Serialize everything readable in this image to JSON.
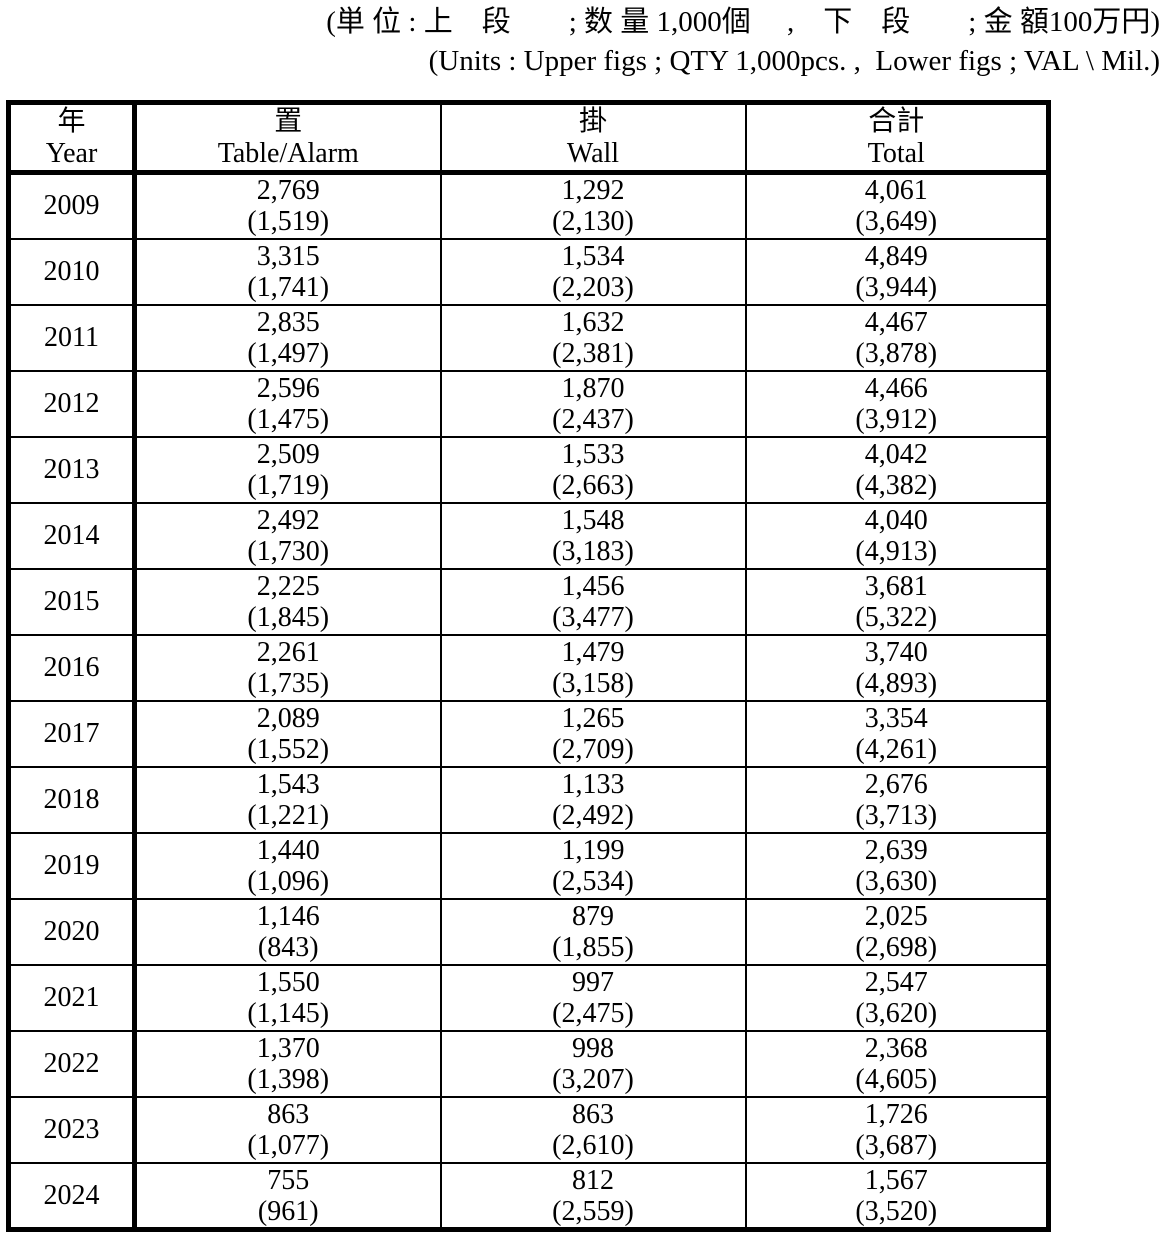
{
  "note": {
    "line1_jp": "(単 位 : 上　段　　; 数 量 1,000個　 ,　下　段　　; 金 額100万円)",
    "line2_en": "(Units : Upper figs ; QTY 1,000pcs. ,  Lower figs ; VAL \\ Mil.)"
  },
  "table": {
    "columns": [
      {
        "jp": "年",
        "en": "Year"
      },
      {
        "jp": "置",
        "en": "Table/Alarm"
      },
      {
        "jp": "掛",
        "en": "Wall"
      },
      {
        "jp": "合計",
        "en": "Total"
      }
    ],
    "rows": [
      {
        "year": "2009",
        "table_alarm": {
          "qty": "2,769",
          "val": "(1,519)"
        },
        "wall": {
          "qty": "1,292",
          "val": "(2,130)"
        },
        "total": {
          "qty": "4,061",
          "val": "(3,649)"
        }
      },
      {
        "year": "2010",
        "table_alarm": {
          "qty": "3,315",
          "val": "(1,741)"
        },
        "wall": {
          "qty": "1,534",
          "val": "(2,203)"
        },
        "total": {
          "qty": "4,849",
          "val": "(3,944)"
        }
      },
      {
        "year": "2011",
        "table_alarm": {
          "qty": "2,835",
          "val": "(1,497)"
        },
        "wall": {
          "qty": "1,632",
          "val": "(2,381)"
        },
        "total": {
          "qty": "4,467",
          "val": "(3,878)"
        }
      },
      {
        "year": "2012",
        "table_alarm": {
          "qty": "2,596",
          "val": "(1,475)"
        },
        "wall": {
          "qty": "1,870",
          "val": "(2,437)"
        },
        "total": {
          "qty": "4,466",
          "val": "(3,912)"
        }
      },
      {
        "year": "2013",
        "table_alarm": {
          "qty": "2,509",
          "val": "(1,719)"
        },
        "wall": {
          "qty": "1,533",
          "val": "(2,663)"
        },
        "total": {
          "qty": "4,042",
          "val": "(4,382)"
        }
      },
      {
        "year": "2014",
        "table_alarm": {
          "qty": "2,492",
          "val": "(1,730)"
        },
        "wall": {
          "qty": "1,548",
          "val": "(3,183)"
        },
        "total": {
          "qty": "4,040",
          "val": "(4,913)"
        }
      },
      {
        "year": "2015",
        "table_alarm": {
          "qty": "2,225",
          "val": "(1,845)"
        },
        "wall": {
          "qty": "1,456",
          "val": "(3,477)"
        },
        "total": {
          "qty": "3,681",
          "val": "(5,322)"
        }
      },
      {
        "year": "2016",
        "table_alarm": {
          "qty": "2,261",
          "val": "(1,735)"
        },
        "wall": {
          "qty": "1,479",
          "val": "(3,158)"
        },
        "total": {
          "qty": "3,740",
          "val": "(4,893)"
        }
      },
      {
        "year": "2017",
        "table_alarm": {
          "qty": "2,089",
          "val": "(1,552)"
        },
        "wall": {
          "qty": "1,265",
          "val": "(2,709)"
        },
        "total": {
          "qty": "3,354",
          "val": "(4,261)"
        }
      },
      {
        "year": "2018",
        "table_alarm": {
          "qty": "1,543",
          "val": "(1,221)"
        },
        "wall": {
          "qty": "1,133",
          "val": "(2,492)"
        },
        "total": {
          "qty": "2,676",
          "val": "(3,713)"
        }
      },
      {
        "year": "2019",
        "table_alarm": {
          "qty": "1,440",
          "val": "(1,096)"
        },
        "wall": {
          "qty": "1,199",
          "val": "(2,534)"
        },
        "total": {
          "qty": "2,639",
          "val": "(3,630)"
        }
      },
      {
        "year": "2020",
        "table_alarm": {
          "qty": "1,146",
          "val": "(843)"
        },
        "wall": {
          "qty": "879",
          "val": "(1,855)"
        },
        "total": {
          "qty": "2,025",
          "val": "(2,698)"
        }
      },
      {
        "year": "2021",
        "table_alarm": {
          "qty": "1,550",
          "val": "(1,145)"
        },
        "wall": {
          "qty": "997",
          "val": "(2,475)"
        },
        "total": {
          "qty": "2,547",
          "val": "(3,620)"
        }
      },
      {
        "year": "2022",
        "table_alarm": {
          "qty": "1,370",
          "val": "(1,398)"
        },
        "wall": {
          "qty": "998",
          "val": "(3,207)"
        },
        "total": {
          "qty": "2,368",
          "val": "(4,605)"
        }
      },
      {
        "year": "2023",
        "table_alarm": {
          "qty": "863",
          "val": "(1,077)"
        },
        "wall": {
          "qty": "863",
          "val": "(2,610)"
        },
        "total": {
          "qty": "1,726",
          "val": "(3,687)"
        }
      },
      {
        "year": "2024",
        "table_alarm": {
          "qty": "755",
          "val": "(961)"
        },
        "wall": {
          "qty": "812",
          "val": "(2,559)"
        },
        "total": {
          "qty": "1,567",
          "val": "(3,520)"
        }
      }
    ]
  }
}
